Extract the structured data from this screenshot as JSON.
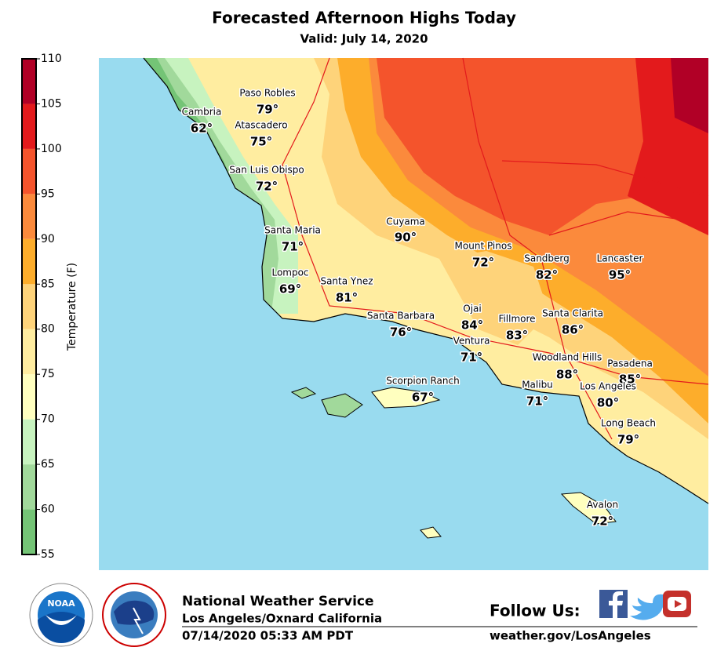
{
  "header": {
    "title": "Forecasted Afternoon Highs Today",
    "subtitle": "Valid: July 14, 2020"
  },
  "colorbar": {
    "label": "Temperature (F)",
    "ticks": [
      55,
      60,
      65,
      70,
      75,
      80,
      85,
      90,
      95,
      100,
      105,
      110
    ],
    "colors": [
      "#74c476",
      "#a1d99b",
      "#c7f3bf",
      "#ffffbf",
      "#ffeda0",
      "#fed37a",
      "#fdad2b",
      "#fb8a3c",
      "#f4542c",
      "#e31a1c",
      "#b10026"
    ]
  },
  "cities": [
    {
      "name": "Paso Robles",
      "temp": "79°"
    },
    {
      "name": "Cambria",
      "temp": "62°"
    },
    {
      "name": "Atascadero",
      "temp": "75°"
    },
    {
      "name": "San Luis Obispo",
      "temp": "72°"
    },
    {
      "name": "Cuyama",
      "temp": "90°"
    },
    {
      "name": "Santa Maria",
      "temp": "71°"
    },
    {
      "name": "Mount Pinos",
      "temp": "72°"
    },
    {
      "name": "Sandberg",
      "temp": "82°"
    },
    {
      "name": "Lancaster",
      "temp": "95°"
    },
    {
      "name": "Lompoc",
      "temp": "69°"
    },
    {
      "name": "Santa Ynez",
      "temp": "81°"
    },
    {
      "name": "Santa Barbara",
      "temp": "76°"
    },
    {
      "name": "Ojai",
      "temp": "84°"
    },
    {
      "name": "Fillmore",
      "temp": "83°"
    },
    {
      "name": "Santa Clarita",
      "temp": "86°"
    },
    {
      "name": "Ventura",
      "temp": "71°"
    },
    {
      "name": "Woodland Hills",
      "temp": "88°"
    },
    {
      "name": "Pasadena",
      "temp": "85°"
    },
    {
      "name": "Scorpion Ranch",
      "temp": "67°"
    },
    {
      "name": "Malibu",
      "temp": "71°"
    },
    {
      "name": "Los Angeles",
      "temp": "80°"
    },
    {
      "name": "Long Beach",
      "temp": "79°"
    },
    {
      "name": "Avalon",
      "temp": "72°"
    }
  ],
  "footer": {
    "logo": "NOAA",
    "agency": "National Weather Service",
    "office": "Los Angeles/Oxnard California",
    "issued": "07/14/2020 05:33 AM PDT",
    "follow": "Follow Us:",
    "url": "weather.gov/LosAngeles"
  }
}
